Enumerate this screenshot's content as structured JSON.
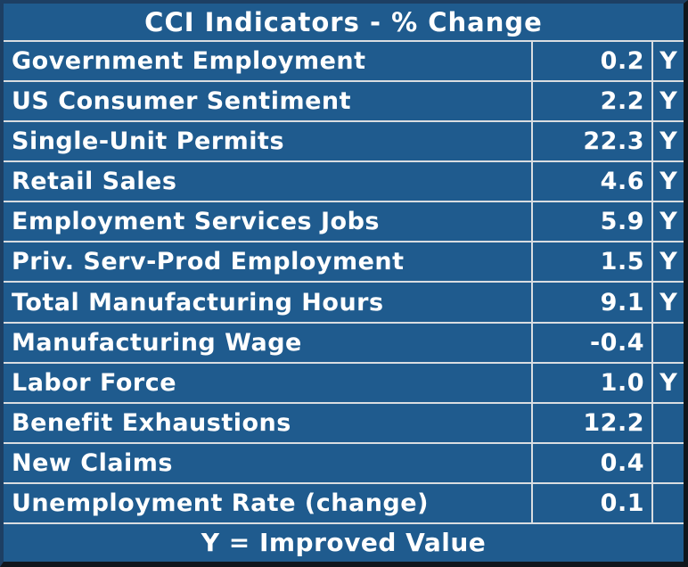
{
  "chart_data": {
    "type": "table",
    "title": "CCI Indicators - % Change",
    "rows": [
      [
        "Government Employment",
        "0.2",
        "Y"
      ],
      [
        "US Consumer Sentiment",
        "2.2",
        "Y"
      ],
      [
        "Single-Unit Permits",
        "22.3",
        "Y"
      ],
      [
        "Retail Sales",
        "4.6",
        "Y"
      ],
      [
        "Employment Services Jobs",
        "5.9",
        "Y"
      ],
      [
        "Priv. Serv-Prod Employment",
        "1.5",
        "Y"
      ],
      [
        "Total Manufacturing Hours",
        "9.1",
        "Y"
      ],
      [
        "Manufacturing Wage",
        "-0.4",
        ""
      ],
      [
        "Labor Force",
        "1.0",
        "Y"
      ],
      [
        "Benefit Exhaustions",
        "12.2",
        ""
      ],
      [
        "New Claims",
        "0.4",
        ""
      ],
      [
        "Unemployment Rate (change)",
        "0.1",
        ""
      ]
    ],
    "footnote": "Y = Improved Value"
  },
  "colors": {
    "background": "#1F5B8E",
    "grid_line": "#D9DDE1",
    "outer_border_navy": "#1D3F63",
    "outer_border_dark": "#10161C",
    "text": "#FFFFFF"
  }
}
